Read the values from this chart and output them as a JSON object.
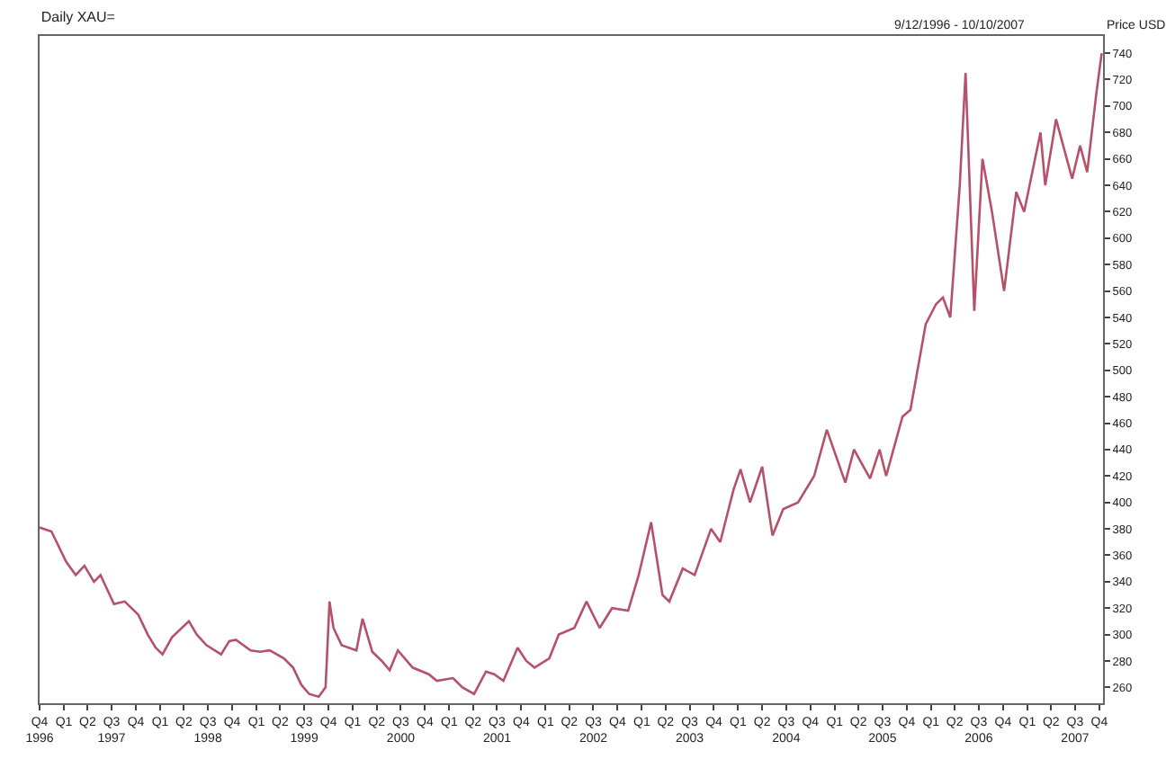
{
  "chart_data": {
    "type": "line",
    "title": "Daily XAU=",
    "annotations": [
      "9/12/1996 - 10/10/2007",
      "Price USD"
    ],
    "x": [
      "1996-10-01",
      "1996-11-15",
      "1997-01-10",
      "1997-02-15",
      "1997-03-20",
      "1997-04-25",
      "1997-05-20",
      "1997-07-10",
      "1997-08-20",
      "1997-10-10",
      "1997-11-15",
      "1997-12-15",
      "1998-01-10",
      "1998-02-15",
      "1998-04-20",
      "1998-05-20",
      "1998-06-25",
      "1998-08-20",
      "1998-09-20",
      "1998-10-15",
      "1998-12-10",
      "1999-01-15",
      "1999-02-20",
      "1999-04-15",
      "1999-05-20",
      "1999-06-20",
      "1999-07-20",
      "1999-08-25",
      "1999-09-20",
      "1999-10-05",
      "1999-10-20",
      "1999-11-20",
      "2000-01-15",
      "2000-02-07",
      "2000-03-15",
      "2000-04-20",
      "2000-05-20",
      "2000-06-20",
      "2000-08-15",
      "2000-10-15",
      "2000-11-15",
      "2001-01-15",
      "2001-02-20",
      "2001-04-05",
      "2001-05-20",
      "2001-06-20",
      "2001-07-25",
      "2001-09-17",
      "2001-10-20",
      "2001-11-20",
      "2002-01-15",
      "2002-02-20",
      "2002-04-20",
      "2002-06-05",
      "2002-07-25",
      "2002-09-10",
      "2002-11-10",
      "2002-12-20",
      "2003-02-05",
      "2003-03-20",
      "2003-04-15",
      "2003-06-05",
      "2003-07-20",
      "2003-09-20",
      "2003-10-25",
      "2003-12-15",
      "2004-01-10",
      "2004-02-15",
      "2004-04-01",
      "2004-05-10",
      "2004-06-20",
      "2004-08-15",
      "2004-10-15",
      "2004-12-02",
      "2005-02-10",
      "2005-03-15",
      "2005-05-15",
      "2005-06-20",
      "2005-07-15",
      "2005-09-15",
      "2005-10-15",
      "2005-12-12",
      "2006-01-20",
      "2006-02-15",
      "2006-03-15",
      "2006-04-20",
      "2006-05-12",
      "2006-06-14",
      "2006-07-15",
      "2006-08-20",
      "2006-10-05",
      "2006-11-20",
      "2006-12-20",
      "2007-02-20",
      "2007-03-10",
      "2007-04-20",
      "2007-06-20",
      "2007-07-20",
      "2007-08-16",
      "2007-09-20",
      "2007-10-10"
    ],
    "series": [
      {
        "color": "#b5526a",
        "values": [
          381,
          378,
          355,
          345,
          352,
          340,
          345,
          323,
          325,
          315,
          300,
          290,
          285,
          298,
          310,
          300,
          292,
          285,
          295,
          296,
          288,
          287,
          288,
          282,
          275,
          262,
          255,
          253,
          260,
          325,
          305,
          292,
          288,
          312,
          287,
          280,
          273,
          288,
          275,
          270,
          265,
          267,
          260,
          255,
          272,
          270,
          265,
          290,
          280,
          275,
          282,
          300,
          305,
          325,
          305,
          320,
          318,
          345,
          385,
          330,
          325,
          350,
          345,
          380,
          370,
          410,
          425,
          400,
          427,
          375,
          395,
          400,
          420,
          455,
          415,
          440,
          418,
          440,
          420,
          465,
          470,
          535,
          550,
          555,
          540,
          640,
          725,
          545,
          660,
          620,
          560,
          635,
          620,
          680,
          640,
          690,
          645,
          670,
          650,
          710,
          740
        ]
      }
    ],
    "xlim": [
      "1996-10-01",
      "2007-10-15"
    ],
    "xticks": [
      {
        "value": "1996-10-01",
        "label": "Q4\n1996"
      },
      {
        "value": "1997-01-01",
        "label": "Q1"
      },
      {
        "value": "1997-04-01",
        "label": "Q2"
      },
      {
        "value": "1997-07-01",
        "label": "Q3\n1997"
      },
      {
        "value": "1997-10-01",
        "label": "Q4"
      },
      {
        "value": "1998-01-01",
        "label": "Q1"
      },
      {
        "value": "1998-04-01",
        "label": "Q2"
      },
      {
        "value": "1998-07-01",
        "label": "Q3\n1998"
      },
      {
        "value": "1998-10-01",
        "label": "Q4"
      },
      {
        "value": "1999-01-01",
        "label": "Q1"
      },
      {
        "value": "1999-04-01",
        "label": "Q2"
      },
      {
        "value": "1999-07-01",
        "label": "Q3\n1999"
      },
      {
        "value": "1999-10-01",
        "label": "Q4"
      },
      {
        "value": "2000-01-01",
        "label": "Q1"
      },
      {
        "value": "2000-04-01",
        "label": "Q2"
      },
      {
        "value": "2000-07-01",
        "label": "Q3\n2000"
      },
      {
        "value": "2000-10-01",
        "label": "Q4"
      },
      {
        "value": "2001-01-01",
        "label": "Q1"
      },
      {
        "value": "2001-04-01",
        "label": "Q2"
      },
      {
        "value": "2001-07-01",
        "label": "Q3\n2001"
      },
      {
        "value": "2001-10-01",
        "label": "Q4"
      },
      {
        "value": "2002-01-01",
        "label": "Q1"
      },
      {
        "value": "2002-04-01",
        "label": "Q2"
      },
      {
        "value": "2002-07-01",
        "label": "Q3\n2002"
      },
      {
        "value": "2002-10-01",
        "label": "Q4"
      },
      {
        "value": "2003-01-01",
        "label": "Q1"
      },
      {
        "value": "2003-04-01",
        "label": "Q2"
      },
      {
        "value": "2003-07-01",
        "label": "Q3\n2003"
      },
      {
        "value": "2003-10-01",
        "label": "Q4"
      },
      {
        "value": "2004-01-01",
        "label": "Q1"
      },
      {
        "value": "2004-04-01",
        "label": "Q2"
      },
      {
        "value": "2004-07-01",
        "label": "Q3\n2004"
      },
      {
        "value": "2004-10-01",
        "label": "Q4"
      },
      {
        "value": "2005-01-01",
        "label": "Q1"
      },
      {
        "value": "2005-04-01",
        "label": "Q2"
      },
      {
        "value": "2005-07-01",
        "label": "Q3\n2005"
      },
      {
        "value": "2005-10-01",
        "label": "Q4"
      },
      {
        "value": "2006-01-01",
        "label": "Q1"
      },
      {
        "value": "2006-04-01",
        "label": "Q2"
      },
      {
        "value": "2006-07-01",
        "label": "Q3\n2006"
      },
      {
        "value": "2006-10-01",
        "label": "Q4"
      },
      {
        "value": "2007-01-01",
        "label": "Q1"
      },
      {
        "value": "2007-04-01",
        "label": "Q2"
      },
      {
        "value": "2007-07-01",
        "label": "Q3\n2007"
      },
      {
        "value": "2007-10-01",
        "label": "Q4"
      }
    ],
    "ylim": [
      248,
      753
    ],
    "yticks": [
      260,
      280,
      300,
      320,
      340,
      360,
      380,
      400,
      420,
      440,
      460,
      480,
      500,
      520,
      540,
      560,
      580,
      600,
      620,
      640,
      660,
      680,
      700,
      720,
      740
    ],
    "marker": "none",
    "line_style": "solid"
  }
}
